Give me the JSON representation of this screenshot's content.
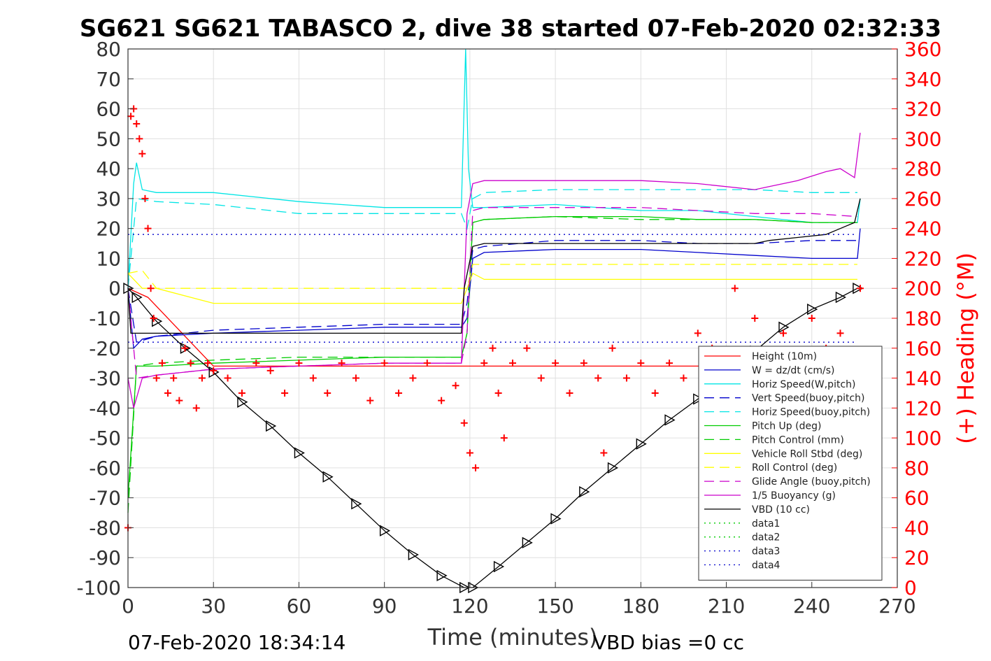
{
  "chart_data": {
    "type": "line",
    "title": "SG621 SG621 TABASCO 2, dive 38 started 07-Feb-2020 02:32:33",
    "xlabel": "Time (minutes)",
    "ylabel": "",
    "y2label": "(+) Heading (°M)",
    "xlim": [
      0,
      270
    ],
    "ylim": [
      -100,
      80
    ],
    "y2lim": [
      0,
      360
    ],
    "xticks": [
      "0",
      "30",
      "60",
      "90",
      "120",
      "150",
      "180",
      "210",
      "240",
      "270"
    ],
    "yticks": [
      "80",
      "70",
      "60",
      "50",
      "40",
      "30",
      "20",
      "10",
      "0",
      "-10",
      "-20",
      "-30",
      "-40",
      "-50",
      "-60",
      "-70",
      "-80",
      "-90",
      "-100"
    ],
    "y2ticks": [
      "360",
      "340",
      "320",
      "300",
      "280",
      "260",
      "240",
      "220",
      "200",
      "180",
      "160",
      "140",
      "120",
      "100",
      "80",
      "60",
      "40",
      "20",
      "0"
    ],
    "grid": true,
    "legend_position": "bottom-right",
    "footer_left": "07-Feb-2020 18:34:14",
    "footer_right": "VBD bias =0 cc",
    "series": [
      {
        "name": "Height (10m)",
        "color": "#ff0000",
        "style": "solid",
        "x": [
          0,
          7,
          30,
          60,
          90,
          119,
          119.5,
          150,
          200,
          256
        ],
        "y": [
          0,
          -3,
          -26,
          -26,
          -26,
          -26,
          -26,
          -26,
          -26,
          -26
        ]
      },
      {
        "name": "W = dz/dt (cm/s)",
        "color": "#0000cc",
        "style": "solid",
        "x": [
          0,
          2,
          5,
          10,
          30,
          60,
          90,
          117,
          119,
          121,
          125,
          150,
          180,
          200,
          220,
          240,
          256,
          257
        ],
        "y": [
          0,
          -20,
          -17,
          -16,
          -15,
          -14,
          -13,
          -13,
          -10,
          10,
          12,
          13,
          13,
          12,
          11,
          10,
          10,
          20
        ]
      },
      {
        "name": "Horiz Speed(W,pitch)",
        "color": "#00e5e5",
        "style": "solid",
        "x": [
          0,
          2,
          3,
          5,
          10,
          30,
          60,
          90,
          117,
          118.5,
          119.5,
          121,
          125,
          150,
          180,
          200,
          220,
          240,
          256,
          257
        ],
        "y": [
          0,
          35,
          42,
          33,
          32,
          32,
          29,
          27,
          27,
          80,
          40,
          27,
          27,
          28,
          26,
          26,
          24,
          22,
          22,
          30
        ]
      },
      {
        "name": "Vert Speed(buoy,pitch)",
        "color": "#0000cc",
        "style": "dashed",
        "x": [
          0,
          3,
          10,
          30,
          60,
          90,
          117,
          119,
          121,
          125,
          150,
          180,
          200,
          220,
          240,
          256
        ],
        "y": [
          0,
          -18,
          -16,
          -14,
          -13,
          -12,
          -12,
          -5,
          13,
          14,
          16,
          16,
          15,
          15,
          16,
          16
        ]
      },
      {
        "name": "Horiz Speed(buoy,pitch)",
        "color": "#00e5e5",
        "style": "dashed",
        "x": [
          0,
          3,
          10,
          30,
          60,
          90,
          117,
          119,
          121,
          125,
          150,
          180,
          200,
          220,
          240,
          256
        ],
        "y": [
          0,
          30,
          29,
          28,
          25,
          25,
          25,
          20,
          30,
          32,
          33,
          33,
          33,
          33,
          32,
          32
        ]
      },
      {
        "name": "Pitch Up (deg)",
        "color": "#00cc00",
        "style": "solid",
        "x": [
          0,
          3,
          10,
          30,
          60,
          90,
          117,
          119,
          121,
          125,
          150,
          180,
          200,
          220,
          240,
          256
        ],
        "y": [
          -70,
          -26,
          -26,
          -25,
          -24,
          -23,
          -23,
          -15,
          22,
          23,
          24,
          24,
          23,
          23,
          22,
          22
        ]
      },
      {
        "name": "Pitch Control (mm)",
        "color": "#00cc00",
        "style": "dashed",
        "x": [
          0,
          3,
          10,
          30,
          60,
          90,
          117,
          119,
          121,
          125,
          150,
          180,
          200,
          220,
          240,
          256
        ],
        "y": [
          -75,
          -26,
          -25,
          -24,
          -23,
          -23,
          -23,
          -15,
          22,
          23,
          24,
          23,
          23,
          23,
          22,
          22
        ]
      },
      {
        "name": "Vehicle Roll Stbd (deg)",
        "color": "#ffff00",
        "style": "solid",
        "x": [
          0,
          5,
          10,
          30,
          60,
          90,
          117,
          119,
          121,
          125,
          150,
          180,
          200,
          220,
          240,
          256
        ],
        "y": [
          5,
          0,
          0,
          -5,
          -5,
          -5,
          -5,
          0,
          5,
          3,
          3,
          3,
          3,
          3,
          3,
          3
        ]
      },
      {
        "name": "Roll Control (deg)",
        "color": "#ffff00",
        "style": "dashed",
        "x": [
          0,
          5,
          10,
          117,
          119,
          121,
          256
        ],
        "y": [
          5,
          6,
          0,
          0,
          0,
          8,
          8
        ]
      },
      {
        "name": "Glide Angle (buoy,pitch)",
        "color": "#cc00cc",
        "style": "dashed",
        "x": [
          0,
          3,
          10,
          30,
          60,
          90,
          117,
          119,
          121,
          125,
          150,
          180,
          200,
          220,
          240,
          256
        ],
        "y": [
          0,
          -30,
          -29,
          -27,
          -26,
          -25,
          -25,
          -15,
          26,
          27,
          27,
          27,
          26,
          25,
          25,
          24
        ]
      },
      {
        "name": "1/5 Buoyancy (g)",
        "color": "#cc00cc",
        "style": "solid",
        "x": [
          0,
          2,
          5,
          10,
          30,
          60,
          90,
          117,
          119,
          121,
          125,
          150,
          180,
          200,
          220,
          225,
          235,
          245,
          250,
          255,
          257
        ],
        "y": [
          -30,
          -40,
          -30,
          -29,
          -27,
          -26,
          -25,
          -25,
          25,
          35,
          36,
          36,
          36,
          35,
          33,
          34,
          36,
          39,
          40,
          37,
          52
        ]
      },
      {
        "name": "VBD (10 cc)",
        "color": "#000000",
        "style": "solid",
        "x": [
          0,
          1,
          5,
          117,
          118,
          121,
          125,
          220,
          225,
          235,
          245,
          250,
          255,
          257
        ],
        "y": [
          0,
          -15,
          -15,
          -15,
          0,
          14,
          15,
          15,
          16,
          17,
          18,
          20,
          22,
          30
        ]
      },
      {
        "name": "data1",
        "color": "#00cc00",
        "style": "dotted",
        "x": [],
        "y": []
      },
      {
        "name": "data2",
        "color": "#00cc00",
        "style": "dotted",
        "x": [],
        "y": []
      },
      {
        "name": "data3",
        "color": "#0000cc",
        "style": "dotted",
        "x": [
          0,
          256
        ],
        "y": [
          18,
          18
        ]
      },
      {
        "name": "data4",
        "color": "#0000cc",
        "style": "dotted",
        "x": [
          0,
          256
        ],
        "y": [
          -18,
          -18
        ]
      }
    ],
    "depth_profile": {
      "color": "#000000",
      "marker": "triangle",
      "x": [
        0,
        3,
        10,
        20,
        30,
        40,
        50,
        60,
        70,
        80,
        90,
        100,
        110,
        118,
        121,
        130,
        140,
        150,
        160,
        170,
        180,
        190,
        200,
        210,
        220,
        230,
        240,
        250,
        256
      ],
      "y": [
        0,
        -3,
        -11,
        -20,
        -28,
        -38,
        -46,
        -55,
        -63,
        -72,
        -81,
        -89,
        -96,
        -100,
        -100,
        -93,
        -85,
        -77,
        -68,
        -60,
        -52,
        -44,
        -37,
        -29,
        -21,
        -13,
        -7,
        -3,
        0
      ]
    },
    "heading": {
      "axis": "right",
      "color": "#ff0000",
      "marker": "plus",
      "x": [
        0,
        1,
        2,
        3,
        4,
        5,
        6,
        7,
        8,
        9,
        10,
        12,
        14,
        16,
        18,
        20,
        22,
        24,
        26,
        28,
        30,
        35,
        40,
        45,
        50,
        55,
        60,
        65,
        70,
        75,
        80,
        85,
        90,
        95,
        100,
        105,
        110,
        115,
        118,
        120,
        122,
        125,
        128,
        130,
        132,
        135,
        140,
        145,
        150,
        155,
        160,
        165,
        167,
        170,
        175,
        180,
        185,
        190,
        195,
        200,
        205,
        210,
        213,
        215,
        220,
        225,
        230,
        235,
        240,
        245,
        250,
        255,
        257
      ],
      "y": [
        40,
        315,
        320,
        310,
        300,
        290,
        260,
        240,
        200,
        180,
        140,
        150,
        130,
        140,
        125,
        160,
        150,
        120,
        140,
        150,
        145,
        140,
        130,
        150,
        145,
        130,
        150,
        140,
        130,
        150,
        140,
        125,
        150,
        130,
        140,
        150,
        125,
        135,
        110,
        90,
        80,
        150,
        160,
        130,
        100,
        150,
        160,
        140,
        150,
        130,
        150,
        140,
        90,
        160,
        140,
        150,
        130,
        150,
        140,
        170,
        160,
        150,
        200,
        140,
        180,
        150,
        170,
        150,
        180,
        160,
        170,
        150,
        200
      ]
    }
  }
}
